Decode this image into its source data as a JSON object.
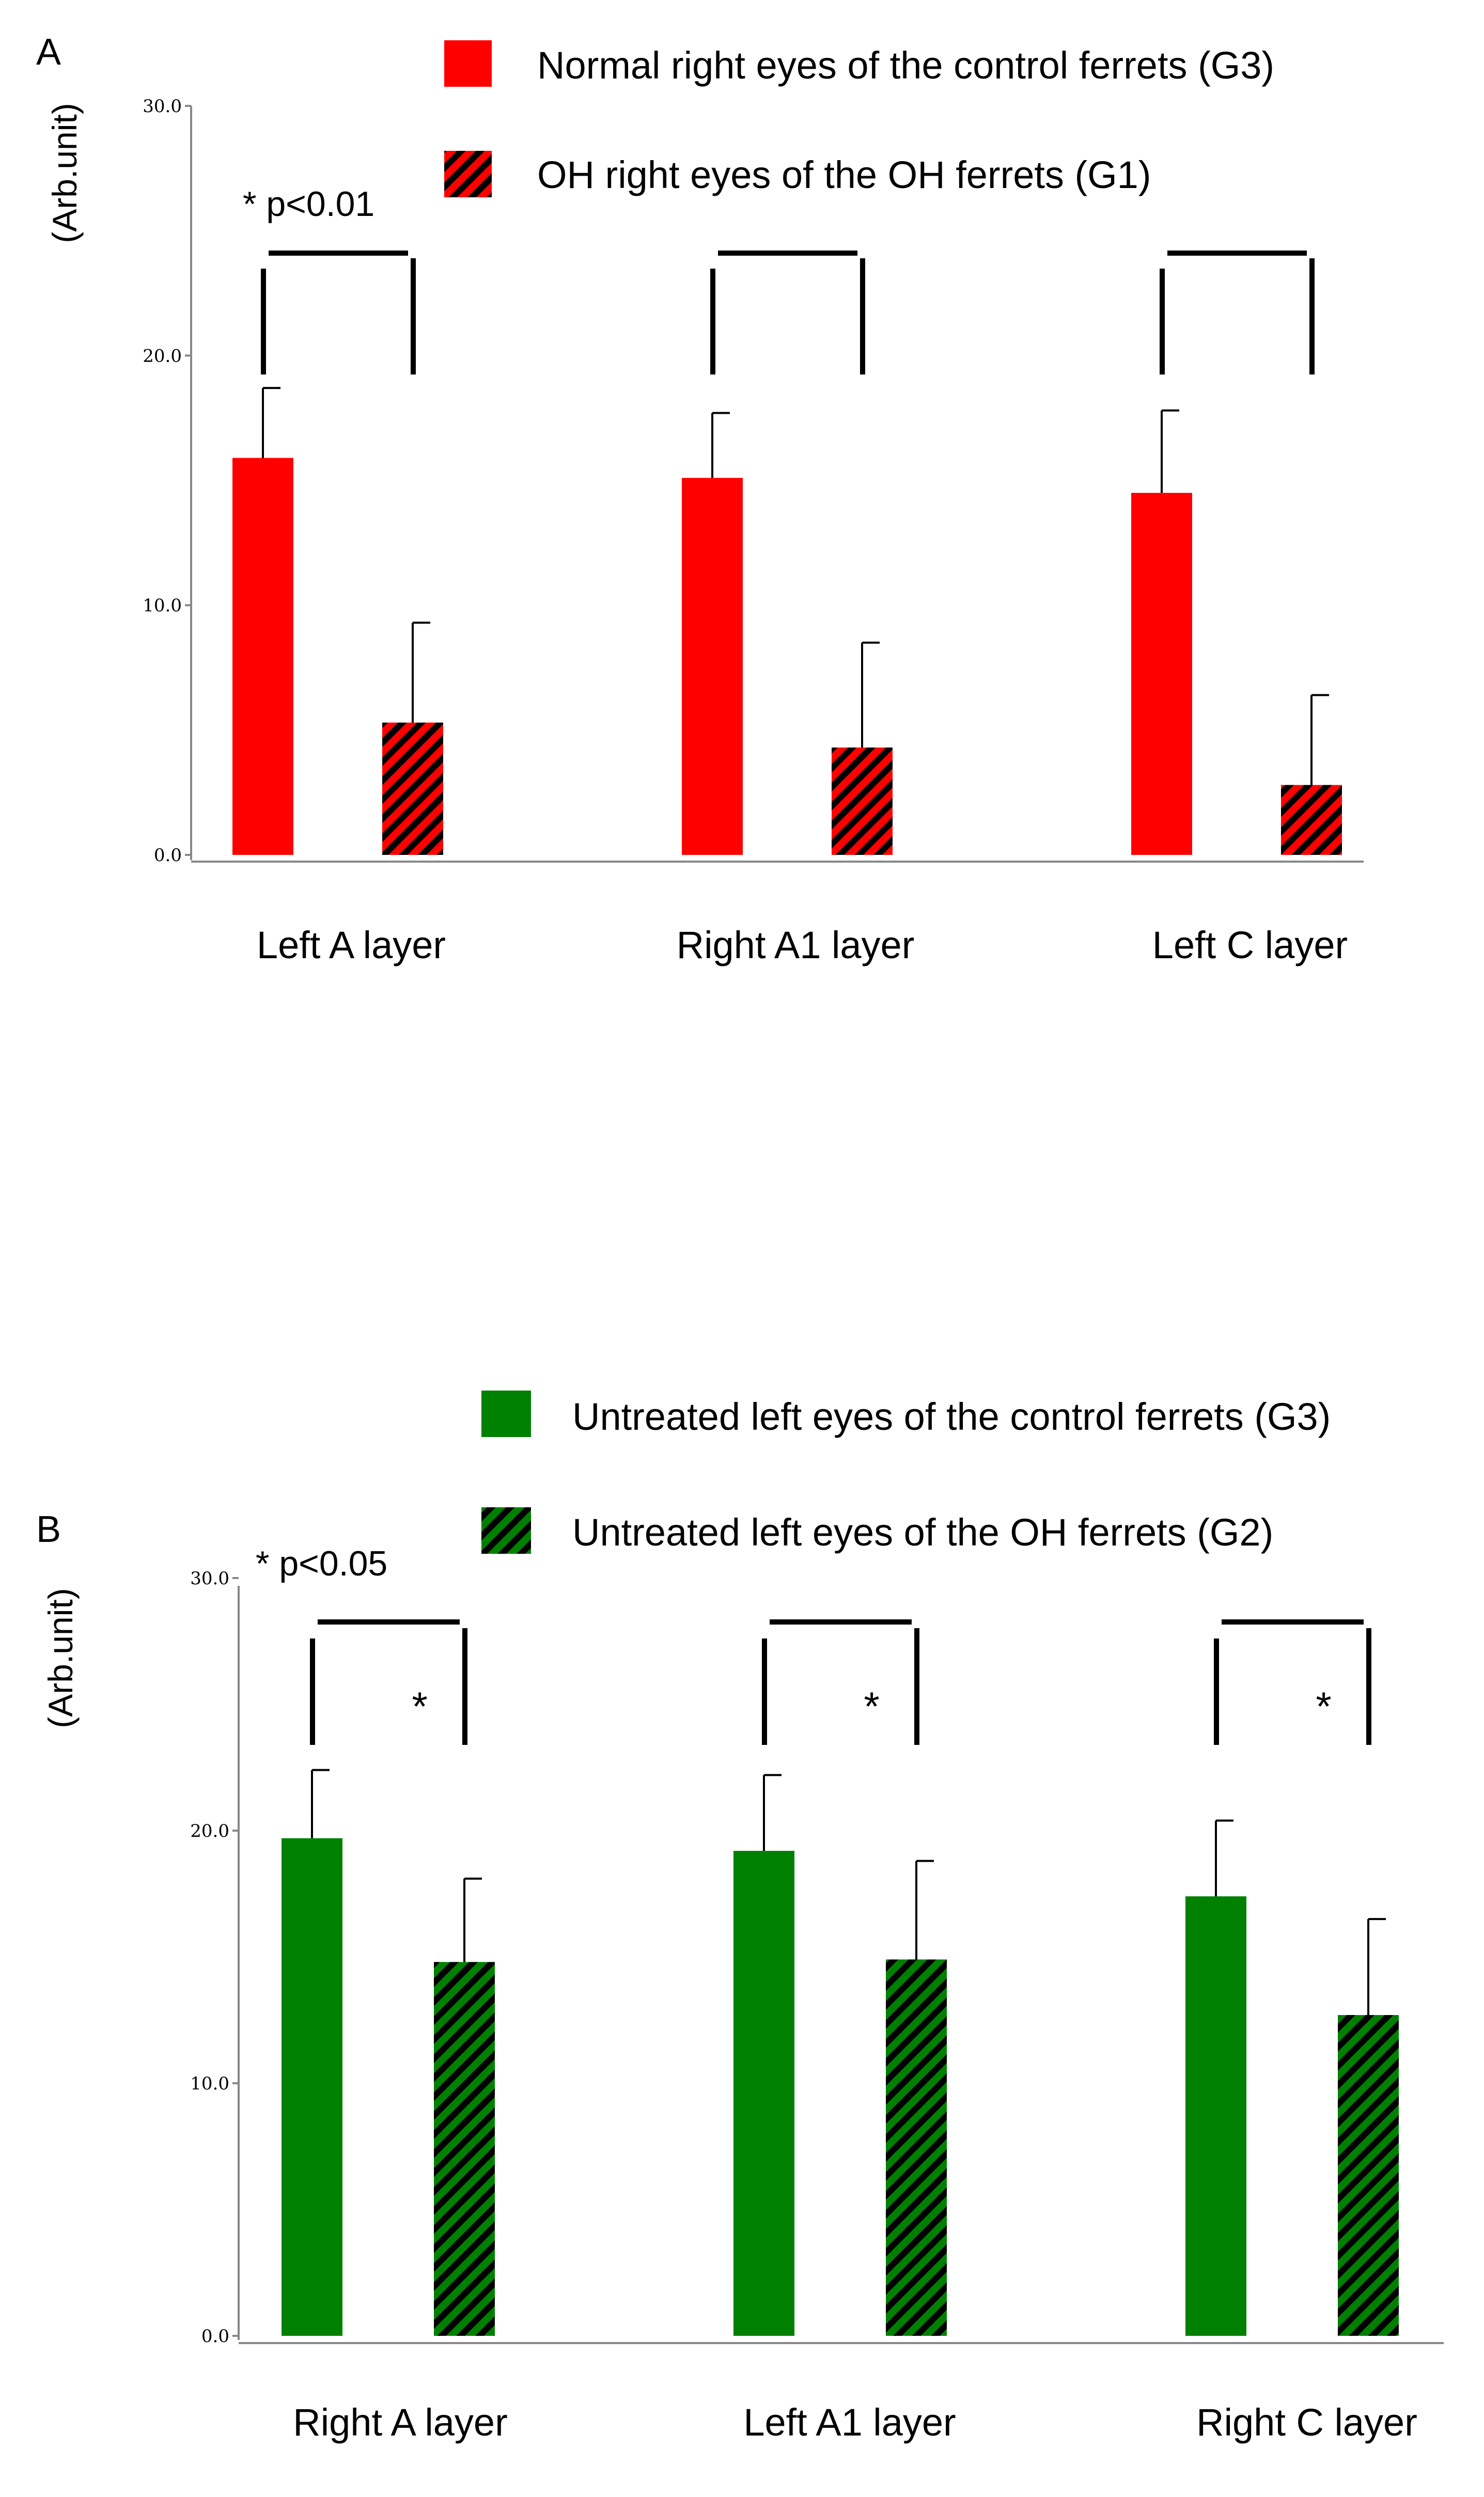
{
  "chart_data": [
    {
      "panel": "A",
      "type": "bar",
      "ylabel": "(Arb.unit)",
      "ylim": [
        0,
        30
      ],
      "yticks": [
        "0.0",
        "10.0",
        "20.0",
        "30.0"
      ],
      "yticks_values": [
        0,
        10,
        20,
        30
      ],
      "categories": [
        "Left A layer",
        "Right A1 layer",
        "Left C layer"
      ],
      "series": [
        {
          "name": "Normal right eyes of the control ferrets (G3)",
          "color": "#ff0000",
          "pattern": "solid",
          "values": [
            15.9,
            15.1,
            14.5
          ],
          "errors": [
            2.8,
            2.6,
            3.3
          ]
        },
        {
          "name": "OH right eyes of the OH ferrets (G1)",
          "color": "#ff0000",
          "pattern": "hatched",
          "values": [
            5.3,
            4.3,
            2.8
          ],
          "errors": [
            4.0,
            4.2,
            3.6
          ]
        }
      ],
      "significance_note": "* p<0.01",
      "significance_marks": [
        "",
        "",
        ""
      ]
    },
    {
      "panel": "B",
      "type": "bar",
      "ylabel": "(Arb.unit)",
      "ylim": [
        0,
        30
      ],
      "yticks": [
        "0.0",
        "10.0",
        "20.0",
        "30.0"
      ],
      "yticks_values": [
        0,
        10,
        20,
        30
      ],
      "categories": [
        "Right A layer",
        "Left A1 layer",
        "Right C layer"
      ],
      "series": [
        {
          "name": "Untreated left eyes of the control ferrets (G3)",
          "color": "#008000",
          "pattern": "solid",
          "values": [
            19.7,
            19.2,
            17.4
          ],
          "errors": [
            2.7,
            3.0,
            3.0
          ]
        },
        {
          "name": "Untreated left eyes of the OH ferrets (G2)",
          "color": "#008000",
          "pattern": "hatched",
          "values": [
            14.8,
            14.9,
            12.7
          ],
          "errors": [
            3.3,
            3.9,
            3.8
          ]
        }
      ],
      "significance_note": "* p<0.05",
      "significance_marks": [
        "*",
        "*",
        "*"
      ]
    }
  ]
}
